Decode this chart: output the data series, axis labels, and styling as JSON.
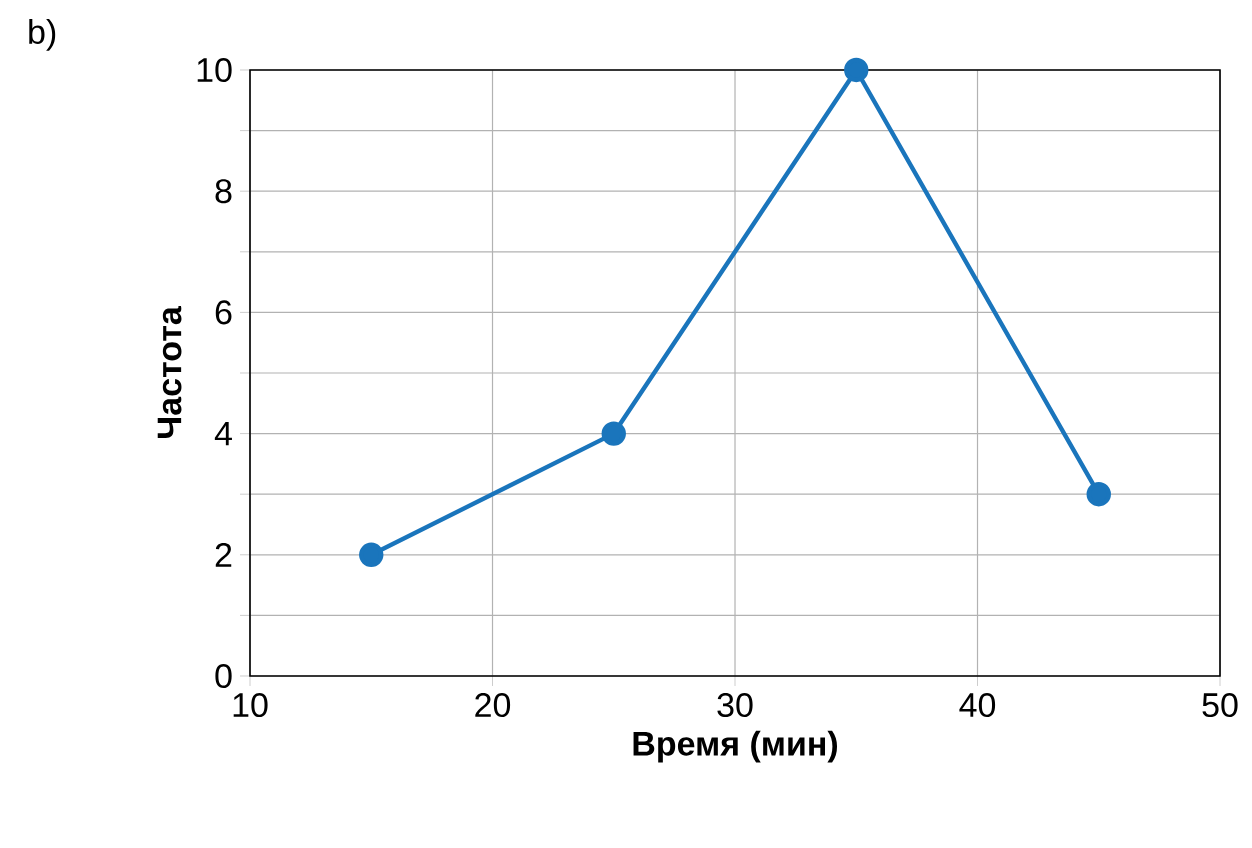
{
  "chart_data": {
    "type": "line",
    "xlabel": "Время (мин)",
    "ylabel": "Частота",
    "annotations": [
      "b)"
    ],
    "x": [
      15,
      25,
      35,
      45
    ],
    "series": [
      {
        "color": "#1a75bc",
        "values": [
          2,
          4,
          10,
          3
        ]
      }
    ],
    "xlim": [
      10,
      50
    ],
    "xticks": [
      10,
      20,
      30,
      40,
      50
    ],
    "ylim": [
      0,
      10
    ],
    "yticks": [
      0,
      {
        "value": 1,
        "label": null
      },
      2,
      {
        "value": 3,
        "label": null
      },
      4,
      {
        "value": 5,
        "label": null
      },
      6,
      {
        "value": 7,
        "label": null
      },
      8,
      {
        "value": 9,
        "label": null
      },
      10
    ],
    "grid": true,
    "marker": "circle",
    "line_style": "solid"
  }
}
